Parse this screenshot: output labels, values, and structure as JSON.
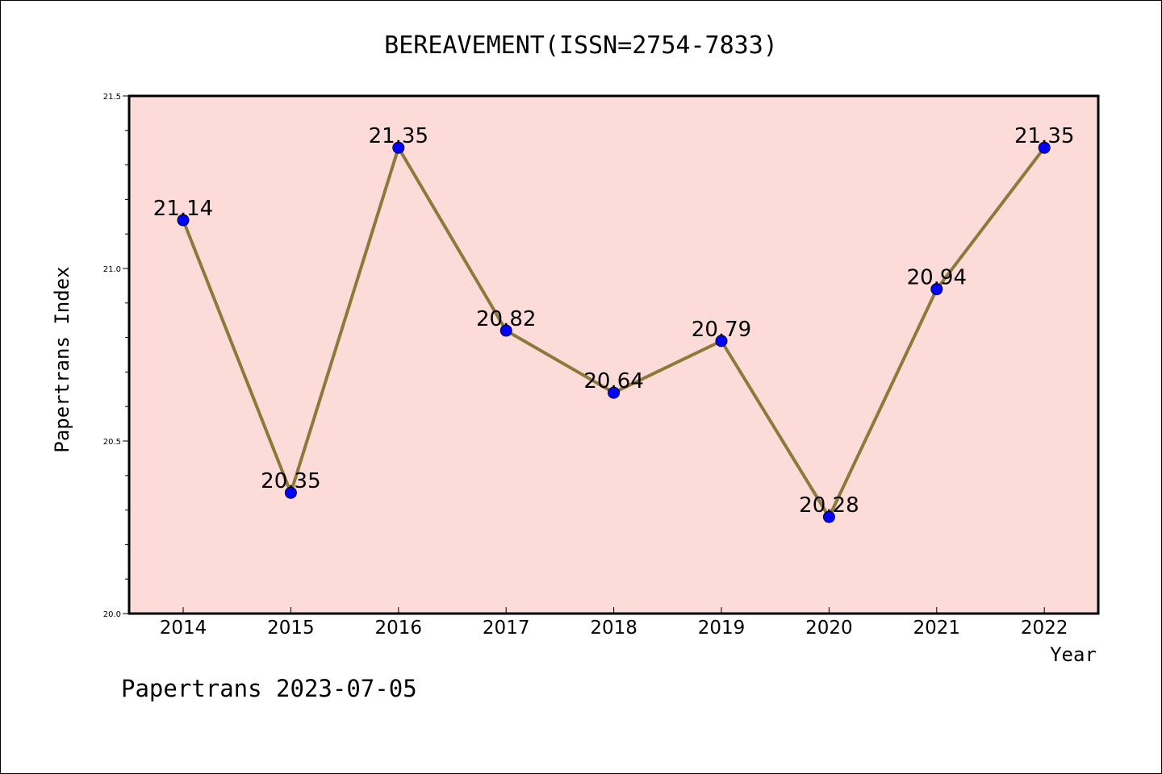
{
  "footer_text": "Papertrans 2023-07-05",
  "chart_data": {
    "type": "line",
    "title": "BEREAVEMENT(ISSN=2754-7833)",
    "xlabel": "Year",
    "ylabel": "Papertrans Index",
    "x": [
      "2014",
      "2015",
      "2016",
      "2017",
      "2018",
      "2019",
      "2020",
      "2021",
      "2022"
    ],
    "values": [
      21.14,
      20.35,
      21.35,
      20.82,
      20.64,
      20.79,
      20.28,
      20.94,
      21.35
    ],
    "data_labels": [
      "21.14",
      "20.35",
      "21.35",
      "20.82",
      "20.64",
      "20.79",
      "20.28",
      "20.94",
      "21.35"
    ],
    "ylim": [
      20.0,
      21.5
    ],
    "yticks": [
      "20.0",
      "20.5",
      "21.0",
      "21.5"
    ],
    "grid": false,
    "colors": {
      "plot_background": "#fddbd8",
      "line": "#8b7a3a",
      "marker": "#0000ff"
    }
  }
}
